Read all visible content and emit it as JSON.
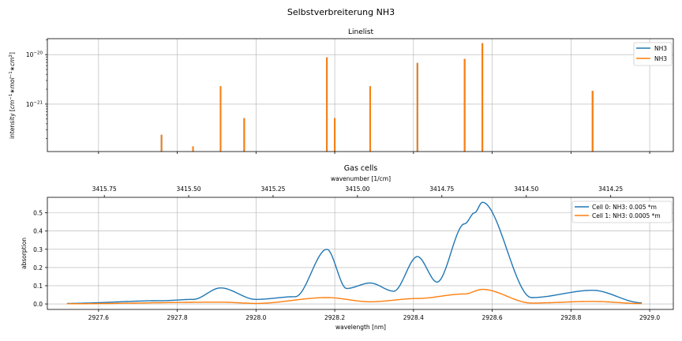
{
  "suptitle": "Selbstverbreiterung NH3",
  "colors": {
    "blue": "#1f77b4",
    "orange": "#ff7f0e",
    "grid": "#b0b0b0"
  },
  "chart_data": [
    {
      "type": "bar",
      "title": "Linelist",
      "ylabel": "intensity [cm$^{-1}$*mol$^{-1}$*cm$^{2}$]",
      "ylabel_parts": [
        "intensity [",
        "cm",
        "−1",
        "∗",
        "mol",
        "−1",
        "∗",
        "cm",
        "2",
        "]"
      ],
      "yscale": "log",
      "ylim": [
        1.1e-22,
        2.1e-20
      ],
      "xlim": [
        2927.47,
        2929.06
      ],
      "yticks": [
        {
          "value": 1e-21,
          "base": "10",
          "exp": "−21"
        },
        {
          "value": 1e-20,
          "base": "10",
          "exp": "−20"
        }
      ],
      "grid": true,
      "legend": {
        "placement": "top-right",
        "entries": [
          "NH3",
          "NH3"
        ]
      },
      "series": [
        {
          "name": "NH3",
          "color": "#1f77b4",
          "x": [
            2927.76,
            2927.84,
            2927.91,
            2927.97,
            2928.18,
            2928.2,
            2928.29,
            2928.41,
            2928.53,
            2928.575,
            2928.855
          ],
          "values": [
            2.4e-22,
            1.4e-22,
            2.3e-21,
            5.2e-22,
            8.8e-21,
            5.2e-22,
            2.3e-21,
            6.8e-21,
            8.2e-21,
            1.7e-20,
            1.85e-21
          ]
        },
        {
          "name": "NH3",
          "color": "#ff7f0e",
          "x": [
            2927.76,
            2927.84,
            2927.91,
            2927.97,
            2928.18,
            2928.2,
            2928.29,
            2928.41,
            2928.53,
            2928.575,
            2928.855
          ],
          "values": [
            2.4e-22,
            1.4e-22,
            2.3e-21,
            5.2e-22,
            8.8e-21,
            5.2e-22,
            2.3e-21,
            6.8e-21,
            8.2e-21,
            1.7e-20,
            1.85e-21
          ]
        }
      ]
    },
    {
      "type": "line",
      "title": "Gas cells",
      "xlabel": "wavelength [nm]",
      "ylabel": "absorption",
      "xlim": [
        2927.47,
        2929.06
      ],
      "ylim": [
        -0.03,
        0.585
      ],
      "xticks": [
        "2927.6",
        "2927.8",
        "2928.0",
        "2928.2",
        "2928.4",
        "2928.6",
        "2928.8",
        "2929.0"
      ],
      "xtick_values": [
        2927.6,
        2927.8,
        2928.0,
        2928.2,
        2928.4,
        2928.6,
        2928.8,
        2929.0
      ],
      "yticks": [
        "0.0",
        "0.1",
        "0.2",
        "0.3",
        "0.4",
        "0.5"
      ],
      "ytick_values": [
        0.0,
        0.1,
        0.2,
        0.3,
        0.4,
        0.5
      ],
      "secondary_xaxis": {
        "label": "wavenumber [1/cm]",
        "ticks": [
          "3415.75",
          "3415.50",
          "3415.25",
          "3415.00",
          "3414.75",
          "3414.50",
          "3414.25"
        ],
        "tick_values": [
          3415.75,
          3415.5,
          3415.25,
          3415.0,
          3414.75,
          3414.5,
          3414.25
        ]
      },
      "grid": true,
      "legend": {
        "placement": "top-right",
        "entries": [
          "Cell 0: NH3: 0.005 *m",
          "Cell 1: NH3: 0.0005 *m"
        ]
      },
      "line_centers": [
        2927.76,
        2927.91,
        2927.97,
        2928.18,
        2928.2,
        2928.29,
        2928.41,
        2928.53,
        2928.575,
        2928.855
      ],
      "series": [
        {
          "name": "Cell 0: NH3: 0.005 *m",
          "color": "#1f77b4",
          "x": [
            2927.52,
            2927.76,
            2927.84,
            2927.91,
            2928.0,
            2928.1,
            2928.18,
            2928.23,
            2928.29,
            2928.35,
            2928.41,
            2928.46,
            2928.53,
            2928.555,
            2928.575,
            2928.7,
            2928.855,
            2928.98
          ],
          "values": [
            0.003,
            0.018,
            0.025,
            0.088,
            0.025,
            0.04,
            0.3,
            0.085,
            0.115,
            0.07,
            0.26,
            0.12,
            0.44,
            0.5,
            0.558,
            0.035,
            0.075,
            0.006
          ]
        },
        {
          "name": "Cell 1: NH3: 0.0005 *m",
          "color": "#ff7f0e",
          "x": [
            2927.52,
            2927.91,
            2928.0,
            2928.18,
            2928.29,
            2928.41,
            2928.53,
            2928.575,
            2928.7,
            2928.855,
            2928.98
          ],
          "values": [
            0.001,
            0.01,
            0.003,
            0.035,
            0.012,
            0.03,
            0.055,
            0.08,
            0.005,
            0.014,
            0.002
          ]
        }
      ]
    }
  ]
}
